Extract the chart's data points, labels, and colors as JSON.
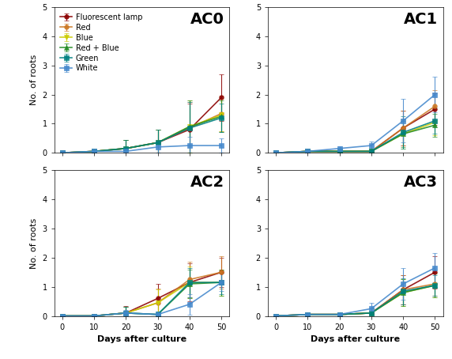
{
  "subplots": [
    "AC0",
    "AC1",
    "AC2",
    "AC3"
  ],
  "x": [
    0,
    10,
    20,
    30,
    40,
    50
  ],
  "series": [
    {
      "name": "Fluorescent lamp",
      "color": "#8B0000",
      "marker": "o",
      "linestyle": "-"
    },
    {
      "name": "Red",
      "color": "#CC7722",
      "marker": "o",
      "linestyle": "-"
    },
    {
      "name": "Blue",
      "color": "#CCCC00",
      "marker": "v",
      "linestyle": "-"
    },
    {
      "name": "Red + Blue",
      "color": "#228B22",
      "marker": "^",
      "linestyle": "-"
    },
    {
      "name": "Green",
      "color": "#008080",
      "marker": "s",
      "linestyle": "-"
    },
    {
      "name": "White",
      "color": "#4488CC",
      "marker": "s",
      "linestyle": "-"
    }
  ],
  "data": {
    "AC0": {
      "y": [
        [
          0.0,
          0.05,
          0.15,
          0.35,
          0.8,
          1.9
        ],
        [
          0.0,
          0.05,
          0.15,
          0.35,
          0.85,
          1.35
        ],
        [
          0.0,
          0.05,
          0.15,
          0.35,
          0.9,
          1.3
        ],
        [
          0.0,
          0.05,
          0.15,
          0.35,
          0.9,
          1.25
        ],
        [
          0.0,
          0.05,
          0.15,
          0.35,
          0.85,
          1.2
        ],
        [
          0.0,
          0.05,
          0.05,
          0.2,
          0.25,
          0.25
        ]
      ],
      "yerr": [
        [
          0.0,
          0.02,
          0.3,
          0.45,
          0.9,
          0.8
        ],
        [
          0.0,
          0.02,
          0.3,
          0.45,
          0.9,
          0.6
        ],
        [
          0.0,
          0.02,
          0.3,
          0.45,
          0.9,
          0.55
        ],
        [
          0.0,
          0.02,
          0.3,
          0.45,
          0.9,
          0.55
        ],
        [
          0.0,
          0.02,
          0.3,
          0.45,
          0.9,
          0.5
        ],
        [
          0.0,
          0.02,
          0.05,
          0.2,
          0.3,
          0.25
        ]
      ]
    },
    "AC1": {
      "y": [
        [
          0.0,
          0.05,
          0.05,
          0.05,
          0.85,
          1.5
        ],
        [
          0.0,
          0.05,
          0.05,
          0.05,
          0.85,
          1.6
        ],
        [
          0.0,
          0.05,
          0.05,
          0.05,
          0.65,
          1.05
        ],
        [
          0.0,
          0.05,
          0.05,
          0.05,
          0.65,
          0.95
        ],
        [
          0.0,
          0.05,
          0.05,
          0.05,
          0.7,
          1.1
        ],
        [
          0.0,
          0.05,
          0.15,
          0.25,
          1.1,
          2.0
        ]
      ],
      "yerr": [
        [
          0.0,
          0.02,
          0.05,
          0.08,
          0.6,
          0.55
        ],
        [
          0.0,
          0.02,
          0.05,
          0.08,
          0.6,
          0.55
        ],
        [
          0.0,
          0.02,
          0.05,
          0.08,
          0.5,
          0.45
        ],
        [
          0.0,
          0.02,
          0.05,
          0.08,
          0.45,
          0.4
        ],
        [
          0.0,
          0.02,
          0.05,
          0.08,
          0.55,
          0.45
        ],
        [
          0.0,
          0.02,
          0.08,
          0.15,
          0.75,
          0.6
        ]
      ]
    },
    "AC2": {
      "y": [
        [
          0.0,
          0.0,
          0.1,
          0.6,
          1.15,
          1.5
        ],
        [
          0.0,
          0.0,
          0.1,
          0.45,
          1.25,
          1.5
        ],
        [
          0.0,
          0.0,
          0.1,
          0.45,
          1.15,
          1.15
        ],
        [
          0.0,
          0.0,
          0.1,
          0.05,
          1.1,
          1.15
        ],
        [
          0.0,
          0.0,
          0.1,
          0.05,
          1.15,
          1.15
        ],
        [
          0.0,
          0.0,
          0.1,
          0.05,
          0.4,
          1.15
        ]
      ],
      "yerr": [
        [
          0.0,
          0.0,
          0.25,
          0.5,
          0.65,
          0.5
        ],
        [
          0.0,
          0.0,
          0.2,
          0.5,
          0.6,
          0.55
        ],
        [
          0.0,
          0.0,
          0.2,
          0.45,
          0.55,
          0.45
        ],
        [
          0.0,
          0.0,
          0.2,
          0.1,
          0.5,
          0.45
        ],
        [
          0.0,
          0.0,
          0.2,
          0.1,
          0.5,
          0.4
        ],
        [
          0.0,
          0.0,
          0.1,
          0.1,
          0.35,
          0.3
        ]
      ]
    },
    "AC3": {
      "y": [
        [
          0.0,
          0.05,
          0.05,
          0.1,
          0.9,
          1.5
        ],
        [
          0.0,
          0.05,
          0.05,
          0.1,
          0.9,
          1.1
        ],
        [
          0.0,
          0.05,
          0.05,
          0.1,
          0.8,
          1.05
        ],
        [
          0.0,
          0.05,
          0.05,
          0.1,
          0.8,
          1.05
        ],
        [
          0.0,
          0.05,
          0.05,
          0.1,
          0.85,
          1.05
        ],
        [
          0.0,
          0.05,
          0.05,
          0.25,
          1.1,
          1.65
        ]
      ],
      "yerr": [
        [
          0.0,
          0.02,
          0.05,
          0.15,
          0.5,
          0.55
        ],
        [
          0.0,
          0.02,
          0.05,
          0.15,
          0.5,
          0.4
        ],
        [
          0.0,
          0.02,
          0.05,
          0.15,
          0.45,
          0.4
        ],
        [
          0.0,
          0.02,
          0.05,
          0.15,
          0.45,
          0.4
        ],
        [
          0.0,
          0.02,
          0.05,
          0.15,
          0.45,
          0.35
        ],
        [
          0.0,
          0.02,
          0.05,
          0.2,
          0.55,
          0.5
        ]
      ]
    }
  },
  "ylim": [
    0,
    5
  ],
  "yticks": [
    0,
    1,
    2,
    3,
    4,
    5
  ],
  "xticks": [
    0,
    10,
    20,
    30,
    40,
    50
  ],
  "xlabel": "Days after culture",
  "ylabel": "No. of roots",
  "background_color": "#ffffff",
  "legend_fontsize": 7,
  "title_fontsize": 14,
  "axis_fontsize": 8,
  "tick_fontsize": 7,
  "marker_size": 4,
  "linewidth": 1.2,
  "capsize": 2
}
